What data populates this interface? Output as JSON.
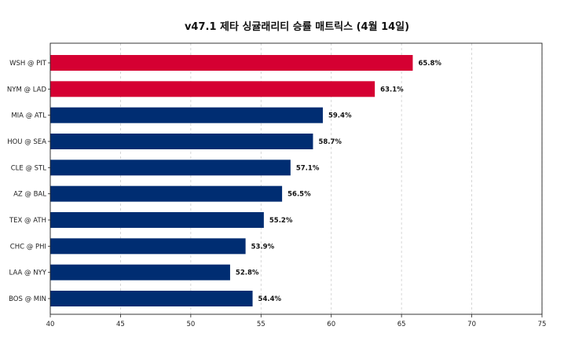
{
  "chart_data": {
    "type": "bar",
    "orientation": "horizontal",
    "title": "v47.1 제타 싱귤래리티 승률 매트릭스 (4월 14일)",
    "xlabel": "",
    "ylabel": "",
    "xlim": [
      40,
      75
    ],
    "xticks": [
      40,
      45,
      50,
      55,
      60,
      65,
      70,
      75
    ],
    "grid": "x-dashed",
    "legend": "none",
    "categories": [
      "WSH @ PIT",
      "NYM @ LAD",
      "MIA @ ATL",
      "HOU @ SEA",
      "CLE @ STL",
      "AZ @ BAL",
      "TEX @ ATH",
      "CHC @ PHI",
      "LAA @ NYY",
      "BOS @ MIN"
    ],
    "values": [
      65.8,
      63.1,
      59.4,
      58.7,
      57.1,
      56.5,
      55.2,
      53.9,
      52.8,
      54.4
    ],
    "value_labels": [
      "65.8%",
      "63.1%",
      "59.4%",
      "58.7%",
      "57.1%",
      "56.5%",
      "55.2%",
      "53.9%",
      "52.8%",
      "54.4%"
    ],
    "bar_colors": [
      "#d50032",
      "#d50032",
      "#002d72",
      "#002d72",
      "#002d72",
      "#002d72",
      "#002d72",
      "#002d72",
      "#002d72",
      "#002d72"
    ]
  }
}
